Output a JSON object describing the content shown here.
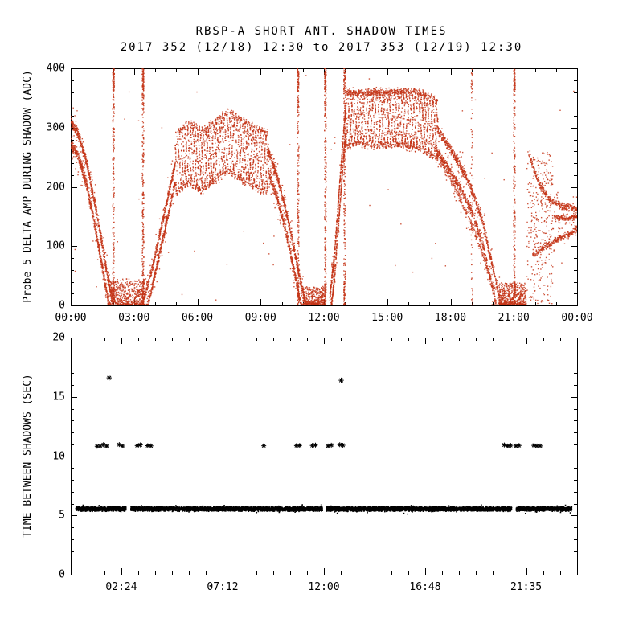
{
  "title": "RBSP-A SHORT ANT. SHADOW TIMES",
  "subtitle": "2017 352 (12/18) 12:30 to 2017 353 (12/19) 12:30",
  "colors": {
    "points_top": "#c43518",
    "points_bottom": "#000000",
    "frame": "#000000",
    "background": "#ffffff"
  },
  "chart_data": [
    {
      "type": "scatter",
      "panel": "top",
      "ylabel": "Probe 5 DELTA AMP DURING SHADOW (ADC)",
      "xlim": [
        0,
        24
      ],
      "ylim": [
        0,
        400
      ],
      "x_minor": 1,
      "y_minor": 20,
      "marker": "dot",
      "xticks": [
        {
          "v": 0,
          "label": "00:00"
        },
        {
          "v": 3,
          "label": "03:00"
        },
        {
          "v": 6,
          "label": "06:00"
        },
        {
          "v": 9,
          "label": "09:00"
        },
        {
          "v": 12,
          "label": "12:00"
        },
        {
          "v": 15,
          "label": "15:00"
        },
        {
          "v": 18,
          "label": "18:00"
        },
        {
          "v": 21,
          "label": "21:00"
        },
        {
          "v": 24,
          "label": "00:00"
        }
      ],
      "yticks": [
        {
          "v": 0,
          "label": "0"
        },
        {
          "v": 100,
          "label": "100"
        },
        {
          "v": 200,
          "label": "200"
        },
        {
          "v": 300,
          "label": "300"
        },
        {
          "v": 400,
          "label": "400"
        }
      ],
      "curves": [
        {
          "pts": [
            [
              0,
              310
            ],
            [
              0.35,
              290
            ],
            [
              0.75,
              242
            ],
            [
              1.15,
              172
            ],
            [
              1.55,
              92
            ],
            [
              1.8,
              40
            ],
            [
              1.97,
              14
            ]
          ],
          "offsets": [
            0,
            -38
          ],
          "n": 650,
          "jitter": 10
        },
        {
          "pts": [
            [
              3.5,
              14
            ],
            [
              3.85,
              60
            ],
            [
              4.25,
              125
            ],
            [
              4.65,
              190
            ],
            [
              4.95,
              238
            ]
          ],
          "offsets": [
            0,
            -32
          ],
          "n": 420,
          "jitter": 9
        },
        {
          "pts": [
            [
              9.35,
              262
            ],
            [
              9.75,
              222
            ],
            [
              10.15,
              168
            ],
            [
              10.55,
              102
            ],
            [
              10.85,
              48
            ],
            [
              11.08,
              12
            ]
          ],
          "offsets": [
            0,
            -36
          ],
          "n": 520,
          "jitter": 9
        },
        {
          "pts": [
            [
              12.27,
              10
            ],
            [
              12.5,
              85
            ],
            [
              12.72,
              190
            ],
            [
              12.92,
              285
            ],
            [
              13.05,
              335
            ]
          ],
          "offsets": [
            0,
            -40
          ],
          "n": 400,
          "jitter": 9
        },
        {
          "pts": [
            [
              17.35,
              298
            ],
            [
              17.95,
              266
            ],
            [
              18.55,
              230
            ],
            [
              19.05,
              192
            ],
            [
              19.55,
              138
            ],
            [
              19.95,
              72
            ],
            [
              20.35,
              10
            ]
          ],
          "offsets": [
            0,
            -38
          ],
          "n": 650,
          "jitter": 9
        },
        {
          "pts": [
            [
              17.55,
              245
            ],
            [
              18.3,
              192
            ],
            [
              19.0,
              138
            ],
            [
              19.6,
              78
            ],
            [
              20.1,
              22
            ]
          ],
          "offsets": [
            0
          ],
          "n": 240,
          "jitter": 8
        },
        {
          "pts": [
            [
              21.75,
              252
            ],
            [
              22.2,
              204
            ],
            [
              22.7,
              179
            ],
            [
              23.3,
              167
            ],
            [
              24,
              162
            ]
          ],
          "offsets": [
            0
          ],
          "n": 320,
          "jitter": 7
        },
        {
          "pts": [
            [
              21.9,
              85
            ],
            [
              22.5,
              100
            ],
            [
              23.1,
              112
            ],
            [
              23.6,
              120
            ],
            [
              24,
              128
            ]
          ],
          "offsets": [
            0
          ],
          "n": 280,
          "jitter": 6
        },
        {
          "pts": [
            [
              22.9,
              149
            ],
            [
              23.45,
              147
            ],
            [
              24,
              150
            ]
          ],
          "offsets": [
            0
          ],
          "n": 160,
          "jitter": 5
        }
      ],
      "weaves": [
        {
          "t0": 4.95,
          "t1": 9.35,
          "base": [
            [
              4.95,
              240
            ],
            [
              5.6,
              257
            ],
            [
              6.2,
              243
            ],
            [
              6.9,
              262
            ],
            [
              7.5,
              278
            ],
            [
              8.1,
              262
            ],
            [
              8.7,
              251
            ],
            [
              9.35,
              240
            ]
          ],
          "amp": 52,
          "period": 0.62,
          "phases": [
            0,
            1.3,
            2.6,
            3.9,
            5.2
          ],
          "n": 430,
          "jitter": 7
        },
        {
          "t0": 13.0,
          "t1": 17.4,
          "base": [
            [
              13,
              316
            ],
            [
              13.6,
              322
            ],
            [
              14.5,
              318
            ],
            [
              15.5,
              320
            ],
            [
              16.5,
              312
            ],
            [
              17.4,
              296
            ]
          ],
          "amp": 50,
          "period": 0.7,
          "phases": [
            0,
            1.3,
            2.6,
            3.9,
            5.2
          ],
          "n": 480,
          "jitter": 7,
          "fold": 362
        }
      ],
      "blobs": [
        {
          "t0": 1.85,
          "t1": 3.5,
          "y0": 0,
          "y1": 45,
          "n": 650
        },
        {
          "t0": 11.0,
          "t1": 12.05,
          "y0": 0,
          "y1": 32,
          "n": 500
        },
        {
          "t0": 20.3,
          "t1": 21.6,
          "y0": 0,
          "y1": 38,
          "n": 600
        },
        {
          "t0": 21.62,
          "t1": 22.85,
          "y0": 0,
          "y1": 260,
          "n": 300,
          "pow": 1
        }
      ],
      "streaks": [
        {
          "t": 2.03,
          "n": 300
        },
        {
          "t": 3.43,
          "n": 330
        },
        {
          "t": 10.78,
          "n": 260
        },
        {
          "t": 12.07,
          "n": 300
        },
        {
          "t": 12.98,
          "n": 230
        },
        {
          "t": 19.02,
          "n": 80
        },
        {
          "t": 21.03,
          "n": 280
        }
      ],
      "noise": [
        {
          "t0": 0,
          "t1": 24,
          "y0": 0,
          "y1": 390,
          "n": 60
        }
      ]
    },
    {
      "type": "scatter",
      "panel": "bottom",
      "ylabel": "TIME BETWEEN SHADOWS (SEC)",
      "xlim": [
        0,
        24
      ],
      "ylim": [
        0,
        20
      ],
      "x_minor": 0.8,
      "y_minor": 1,
      "marker": "asterisk",
      "xticks": [
        {
          "v": 2.4,
          "label": "02:24"
        },
        {
          "v": 7.2,
          "label": "07:12"
        },
        {
          "v": 12,
          "label": "12:00"
        },
        {
          "v": 16.8,
          "label": "16:48"
        },
        {
          "v": 21.583,
          "label": "21:35"
        }
      ],
      "yticks": [
        {
          "v": 0,
          "label": "0"
        },
        {
          "v": 5,
          "label": "5"
        },
        {
          "v": 10,
          "label": "10"
        },
        {
          "v": 15,
          "label": "15"
        },
        {
          "v": 20,
          "label": "20"
        }
      ],
      "baseline": {
        "y": 5.55,
        "x0": 0.25,
        "x1": 23.75,
        "half_height": 0.22,
        "gaps": [
          [
            2.62,
            2.85
          ],
          [
            11.93,
            12.12
          ],
          [
            20.9,
            21.12
          ]
        ]
      },
      "stars_mid": {
        "y": 10.9,
        "x": [
          1.25,
          1.4,
          1.55,
          1.7,
          2.3,
          2.45,
          3.15,
          3.3,
          3.65,
          3.8,
          9.15,
          10.7,
          10.85,
          11.45,
          11.6,
          12.2,
          12.35,
          12.75,
          12.9,
          20.55,
          20.7,
          20.85,
          21.1,
          21.25,
          21.95,
          22.1,
          22.25
        ]
      },
      "outliers": [
        {
          "x": 1.82,
          "y": 16.6
        },
        {
          "x": 12.82,
          "y": 16.4
        }
      ]
    }
  ]
}
